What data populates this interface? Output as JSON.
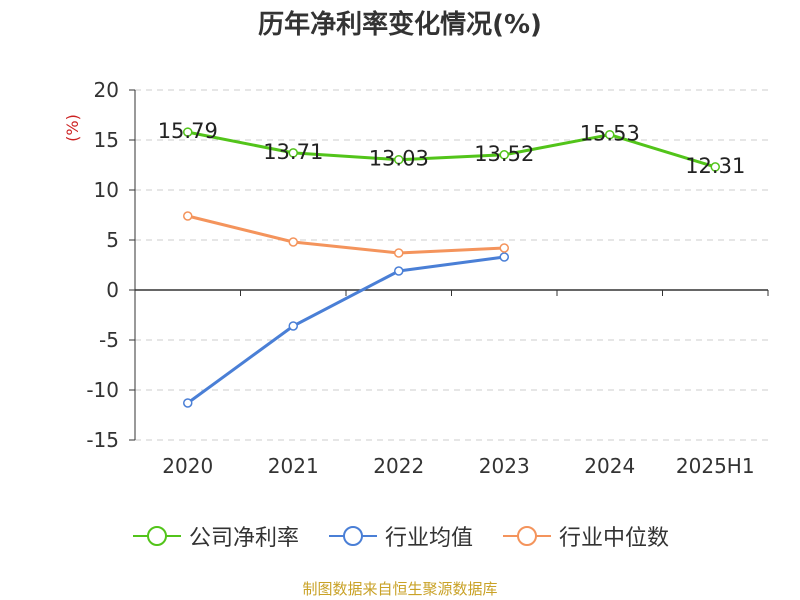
{
  "title": "历年净利率变化情况(%)",
  "source": "制图数据来自恒生聚源数据库",
  "colors": {
    "company": "#52c41a",
    "industry_avg": "#4a7fd6",
    "industry_median": "#f4945c",
    "grid": "#cccccc",
    "axis": "#333333",
    "source": "#c9a227"
  },
  "chart_data": {
    "type": "line",
    "title": "历年净利率变化情况(%)",
    "xlabel": "",
    "ylabel": "(%)",
    "categories": [
      "2020",
      "2021",
      "2022",
      "2023",
      "2024",
      "2025H1"
    ],
    "ylim": [
      -15,
      20
    ],
    "yticks": [
      20,
      15,
      10,
      5,
      0,
      -5,
      -10,
      -15
    ],
    "grid": true,
    "legend_position": "bottom",
    "series": [
      {
        "name": "公司净利率",
        "color": "#52c41a",
        "values": [
          15.79,
          13.71,
          13.03,
          13.52,
          15.53,
          12.31
        ],
        "labels": [
          "15.79",
          "13.71",
          "13.03",
          "13.52",
          "15.53",
          "12.31"
        ]
      },
      {
        "name": "行业均值",
        "color": "#4a7fd6",
        "values": [
          -11.3,
          -3.6,
          1.9,
          3.3,
          null,
          null
        ]
      },
      {
        "name": "行业中位数",
        "color": "#f4945c",
        "values": [
          7.4,
          4.8,
          3.7,
          4.2,
          null,
          null
        ]
      }
    ]
  }
}
